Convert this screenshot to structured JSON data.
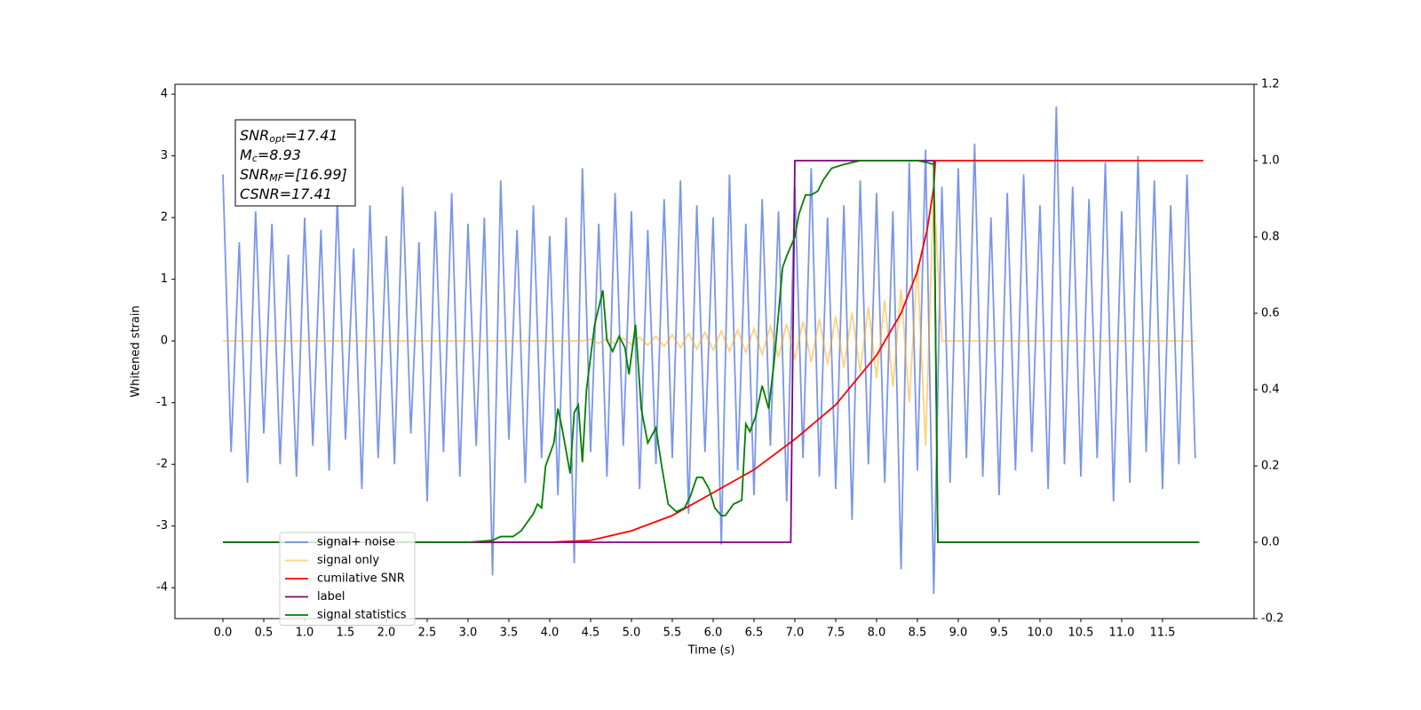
{
  "chart_data": {
    "type": "line",
    "xlabel": "Time (s)",
    "ylabel": "Whitened strain",
    "annotations": [
      {
        "main": "SNR",
        "sub": "opt",
        "rest": "=17.41"
      },
      {
        "main": "M",
        "sub": "c",
        "rest": "=8.93"
      },
      {
        "main": "SNR",
        "sub": "MF",
        "rest": "=[16.99]"
      },
      {
        "main": "CSNR",
        "rest": "=17.41"
      }
    ],
    "xlim": [
      -0.587,
      12.62
    ],
    "ylim": [
      -4.5,
      4.16
    ],
    "y2lim": [
      -0.2,
      1.2
    ],
    "xticks": [
      {
        "value": 0,
        "label": "0.0"
      },
      0.5,
      {
        "value": 1,
        "label": "1.0"
      },
      1.5,
      {
        "value": 2,
        "label": "2.0"
      },
      2.5,
      {
        "value": 3,
        "label": "3.0"
      },
      3.5,
      {
        "value": 4,
        "label": "4.0"
      },
      4.5,
      {
        "value": 5,
        "label": "5.0"
      },
      5.5,
      {
        "value": 6,
        "label": "6.0"
      },
      6.5,
      {
        "value": 7,
        "label": "7.0"
      },
      7.5,
      {
        "value": 8,
        "label": "8.0"
      },
      8.5,
      {
        "value": 9,
        "label": "9.0"
      },
      9.5,
      {
        "value": 10,
        "label": "10.0"
      },
      10.5,
      {
        "value": 11,
        "label": "11.0"
      },
      11.5
    ],
    "yticks": [
      -4,
      -3,
      -2,
      -1,
      0,
      1,
      2,
      3,
      4
    ],
    "y2ticks": [
      -0.2,
      {
        "value": 0,
        "label": "0.0"
      },
      0.2,
      0.4,
      0.6,
      0.8,
      {
        "value": 1,
        "label": "1.0"
      },
      1.2
    ],
    "legend": "lower left",
    "x": [
      0,
      0.1,
      0.2,
      0.3,
      0.4,
      0.5,
      0.6,
      0.7,
      0.8,
      0.9,
      1,
      1.1,
      1.2,
      1.3,
      1.4,
      1.5,
      1.6,
      1.7,
      1.8,
      1.9,
      2,
      2.1,
      2.2,
      2.3,
      2.4,
      2.5,
      2.6,
      2.7,
      2.8,
      2.9,
      3,
      3.1,
      3.2,
      3.3,
      3.4,
      3.5,
      3.6,
      3.7,
      3.8,
      3.9,
      4,
      4.1,
      4.2,
      4.3,
      4.4,
      4.5,
      4.6,
      4.7,
      4.8,
      4.9,
      5,
      5.1,
      5.2,
      5.3,
      5.4,
      5.5,
      5.6,
      5.7,
      5.8,
      5.9,
      6,
      6.1,
      6.2,
      6.3,
      6.4,
      6.5,
      6.6,
      6.7,
      6.8,
      6.9,
      7,
      7.1,
      7.2,
      7.3,
      7.4,
      7.5,
      7.6,
      7.7,
      7.8,
      7.9,
      8,
      8.1,
      8.2,
      8.3,
      8.4,
      8.5,
      8.6,
      8.7,
      8.8,
      8.9,
      9,
      9.1,
      9.2,
      9.3,
      9.4,
      9.5,
      9.6,
      9.7,
      9.8,
      9.9,
      10,
      10.1,
      10.2,
      10.3,
      10.4,
      10.5,
      10.6,
      10.7,
      10.8,
      10.9,
      11,
      11.1,
      11.2,
      11.3,
      11.4,
      11.5,
      11.6,
      11.7,
      11.8,
      11.9
    ],
    "series": [
      {
        "name": "signal+ noise",
        "color": "#4169e1",
        "opacity": 0.7,
        "values": [
          2.7,
          -1.8,
          1.6,
          -2.3,
          2.1,
          -1.5,
          1.9,
          -2.0,
          1.4,
          -2.2,
          2.0,
          -1.7,
          1.8,
          -2.1,
          2.3,
          -1.6,
          1.5,
          -2.4,
          2.2,
          -1.9,
          1.7,
          -2.0,
          2.5,
          -1.5,
          1.6,
          -2.6,
          2.1,
          -1.8,
          2.4,
          -2.2,
          1.9,
          -1.7,
          2.0,
          -3.8,
          2.6,
          -1.6,
          1.8,
          -2.3,
          2.2,
          -1.9,
          1.7,
          -2.5,
          2.0,
          -3.6,
          2.8,
          -1.8,
          1.9,
          -2.2,
          2.4,
          -1.7,
          2.1,
          -2.4,
          1.8,
          -2.0,
          2.3,
          -1.9,
          2.6,
          -2.8,
          2.2,
          -1.8,
          2.0,
          -3.3,
          2.7,
          -2.1,
          1.9,
          -2.5,
          2.3,
          -1.7,
          2.1,
          -2.6,
          2.5,
          -1.9,
          2.8,
          -2.2,
          2.0,
          -2.4,
          2.2,
          -2.9,
          2.6,
          -2.0,
          2.4,
          -2.3,
          2.1,
          -3.7,
          2.9,
          -2.1,
          3.1,
          -4.1,
          2.5,
          -2.3,
          2.8,
          -1.9,
          3.2,
          -2.2,
          2.0,
          -2.5,
          2.4,
          -2.1,
          2.7,
          -1.8,
          2.2,
          -2.4,
          3.8,
          -2.0,
          2.5,
          -2.2,
          2.3,
          -1.9,
          2.9,
          -2.6,
          2.1,
          -2.3,
          3.0,
          -1.8,
          2.6,
          -2.4,
          2.2,
          -2.0,
          2.7,
          -1.9
        ]
      },
      {
        "name": "signal only",
        "color": "#ffa500",
        "opacity": 0.5,
        "values": [
          0,
          0,
          0,
          0,
          0,
          0,
          0,
          0,
          0,
          0,
          0,
          0,
          0,
          0,
          0,
          0,
          0,
          0,
          0,
          0,
          0,
          0,
          0,
          0,
          0,
          0,
          0,
          0,
          0,
          0,
          0,
          0,
          0,
          0,
          0,
          0,
          0,
          0,
          0,
          0,
          0,
          0,
          0,
          0,
          0,
          0.03,
          -0.04,
          0.04,
          -0.05,
          0.05,
          -0.06,
          0.06,
          -0.07,
          0.08,
          -0.09,
          0.1,
          -0.11,
          0.12,
          -0.13,
          0.14,
          -0.15,
          0.16,
          -0.17,
          0.18,
          -0.19,
          0.2,
          -0.22,
          0.24,
          -0.26,
          0.28,
          -0.3,
          0.32,
          -0.34,
          0.36,
          -0.38,
          0.4,
          -0.43,
          0.46,
          -0.5,
          0.55,
          -0.6,
          0.66,
          -0.74,
          0.84,
          -1.0,
          1.25,
          -1.7,
          2.5,
          0,
          0,
          0,
          0,
          0,
          0,
          0,
          0,
          0,
          0,
          0,
          0,
          0,
          0,
          0,
          0,
          0,
          0,
          0,
          0,
          0,
          0,
          0,
          0,
          0,
          0,
          0,
          0,
          0,
          0,
          0,
          0
        ]
      },
      {
        "name": "cumilative SNR",
        "color": "#ff0000",
        "axis": "y2",
        "x": [
          0,
          4,
          4.5,
          5,
          5.5,
          6,
          6.5,
          7,
          7.5,
          8,
          8.3,
          8.5,
          8.62,
          8.7,
          8.72,
          12.0
        ],
        "values": [
          0,
          0,
          0.005,
          0.03,
          0.07,
          0.13,
          0.19,
          0.27,
          0.36,
          0.49,
          0.6,
          0.71,
          0.82,
          0.93,
          1,
          1
        ]
      },
      {
        "name": "label",
        "color": "#800080",
        "axis": "y2",
        "x": [
          0,
          6.95,
          7.0,
          8.7,
          8.75,
          11.95
        ],
        "values": [
          0,
          0,
          1,
          1,
          0,
          0
        ]
      },
      {
        "name": "signal statistics",
        "color": "#008000",
        "axis": "y2",
        "x": [
          0,
          3.0,
          3.3,
          3.4,
          3.55,
          3.65,
          3.8,
          3.85,
          3.9,
          3.95,
          4.05,
          4.1,
          4.15,
          4.25,
          4.3,
          4.35,
          4.4,
          4.45,
          4.55,
          4.65,
          4.7,
          4.77,
          4.85,
          4.92,
          4.97,
          5.05,
          5.12,
          5.2,
          5.3,
          5.37,
          5.45,
          5.55,
          5.65,
          5.72,
          5.8,
          5.87,
          5.95,
          6.02,
          6.1,
          6.15,
          6.25,
          6.35,
          6.4,
          6.45,
          6.52,
          6.6,
          6.68,
          6.75,
          6.85,
          6.9,
          7.0,
          7.05,
          7.13,
          7.2,
          7.28,
          7.35,
          7.45,
          7.6,
          7.8,
          8.5,
          8.62,
          8.7,
          8.75,
          11.95
        ],
        "values": [
          0,
          0,
          0.005,
          0.015,
          0.015,
          0.03,
          0.075,
          0.1,
          0.09,
          0.2,
          0.26,
          0.35,
          0.3,
          0.18,
          0.34,
          0.36,
          0.21,
          0.4,
          0.57,
          0.66,
          0.53,
          0.5,
          0.54,
          0.51,
          0.44,
          0.57,
          0.35,
          0.26,
          0.3,
          0.2,
          0.1,
          0.08,
          0.09,
          0.12,
          0.17,
          0.17,
          0.14,
          0.09,
          0.07,
          0.07,
          0.1,
          0.11,
          0.31,
          0.29,
          0.33,
          0.41,
          0.35,
          0.48,
          0.72,
          0.75,
          0.8,
          0.86,
          0.91,
          0.91,
          0.92,
          0.95,
          0.98,
          0.99,
          1,
          1,
          0.995,
          0.99,
          0,
          0
        ]
      }
    ]
  }
}
